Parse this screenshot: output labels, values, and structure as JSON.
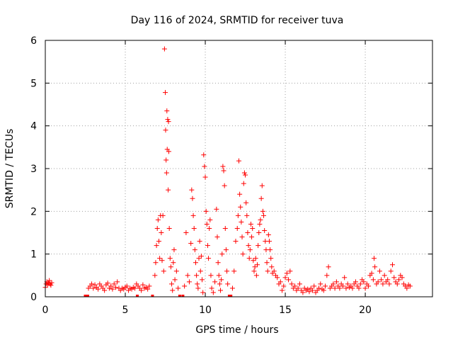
{
  "chart_data": {
    "type": "scatter",
    "title": "Day 116 of 2024, SRMTID for receiver tuva",
    "xlabel": "GPS time / hours",
    "ylabel": "SRMTID / TECUs",
    "xlim": [
      0,
      24.2
    ],
    "ylim": [
      0,
      6
    ],
    "xticks": [
      0,
      5,
      10,
      15,
      20
    ],
    "yticks": [
      0,
      1,
      2,
      3,
      4,
      5,
      6
    ],
    "xtick_labels": [
      "0",
      "5",
      "10",
      "15",
      "20"
    ],
    "ytick_labels": [
      "0",
      "1",
      "2",
      "3",
      "4",
      "5",
      "6"
    ],
    "grid": true,
    "marker": "+",
    "marker_color": "#ff0000",
    "series": [
      {
        "name": "SRMTID",
        "points": [
          [
            0.0,
            0.22
          ],
          [
            0.05,
            0.3
          ],
          [
            0.1,
            0.35
          ],
          [
            0.15,
            0.28
          ],
          [
            0.2,
            0.32
          ],
          [
            0.25,
            0.38
          ],
          [
            0.3,
            0.3
          ],
          [
            0.35,
            0.27
          ],
          [
            0.4,
            0.33
          ],
          [
            2.5,
            0.0
          ],
          [
            2.65,
            0.0
          ],
          [
            2.7,
            0.2
          ],
          [
            2.8,
            0.25
          ],
          [
            2.9,
            0.3
          ],
          [
            3.0,
            0.2
          ],
          [
            3.1,
            0.28
          ],
          [
            3.2,
            0.22
          ],
          [
            3.3,
            0.18
          ],
          [
            3.4,
            0.3
          ],
          [
            3.5,
            0.25
          ],
          [
            3.6,
            0.2
          ],
          [
            3.7,
            0.15
          ],
          [
            3.8,
            0.28
          ],
          [
            3.9,
            0.32
          ],
          [
            4.0,
            0.2
          ],
          [
            4.1,
            0.25
          ],
          [
            4.2,
            0.18
          ],
          [
            4.3,
            0.3
          ],
          [
            4.4,
            0.22
          ],
          [
            4.5,
            0.35
          ],
          [
            4.6,
            0.2
          ],
          [
            4.7,
            0.15
          ],
          [
            4.8,
            0.2
          ],
          [
            4.9,
            0.18
          ],
          [
            5.0,
            0.22
          ],
          [
            5.1,
            0.25
          ],
          [
            5.2,
            0.15
          ],
          [
            5.3,
            0.2
          ],
          [
            5.4,
            0.18
          ],
          [
            5.5,
            0.22
          ],
          [
            5.6,
            0.2
          ],
          [
            5.7,
            0.3
          ],
          [
            5.75,
            0.0
          ],
          [
            5.8,
            0.25
          ],
          [
            5.9,
            0.2
          ],
          [
            6.0,
            0.15
          ],
          [
            6.1,
            0.28
          ],
          [
            6.2,
            0.2
          ],
          [
            6.3,
            0.22
          ],
          [
            6.4,
            0.18
          ],
          [
            6.5,
            0.25
          ],
          [
            6.7,
            0.0
          ],
          [
            6.85,
            0.5
          ],
          [
            6.9,
            0.8
          ],
          [
            6.95,
            1.2
          ],
          [
            7.0,
            1.6
          ],
          [
            7.05,
            1.8
          ],
          [
            7.1,
            1.3
          ],
          [
            7.15,
            0.9
          ],
          [
            7.2,
            1.9
          ],
          [
            7.25,
            1.5
          ],
          [
            7.3,
            0.85
          ],
          [
            7.35,
            1.9
          ],
          [
            7.4,
            0.6
          ],
          [
            7.45,
            5.8
          ],
          [
            7.5,
            4.78
          ],
          [
            7.52,
            3.9
          ],
          [
            7.55,
            3.2
          ],
          [
            7.58,
            2.9
          ],
          [
            7.6,
            4.35
          ],
          [
            7.62,
            3.45
          ],
          [
            7.65,
            4.15
          ],
          [
            7.68,
            2.5
          ],
          [
            7.7,
            4.1
          ],
          [
            7.72,
            3.4
          ],
          [
            7.75,
            1.6
          ],
          [
            7.8,
            0.9
          ],
          [
            7.85,
            0.7
          ],
          [
            7.9,
            0.3
          ],
          [
            7.95,
            0.15
          ],
          [
            8.0,
            0.8
          ],
          [
            8.05,
            1.1
          ],
          [
            8.1,
            0.4
          ],
          [
            8.2,
            0.6
          ],
          [
            8.3,
            0.2
          ],
          [
            8.4,
            0.0
          ],
          [
            8.6,
            0.0
          ],
          [
            8.7,
            0.25
          ],
          [
            8.8,
            1.5
          ],
          [
            8.9,
            0.5
          ],
          [
            9.0,
            0.35
          ],
          [
            9.1,
            1.25
          ],
          [
            9.15,
            2.5
          ],
          [
            9.2,
            2.3
          ],
          [
            9.25,
            1.9
          ],
          [
            9.3,
            1.6
          ],
          [
            9.35,
            1.1
          ],
          [
            9.4,
            0.8
          ],
          [
            9.45,
            0.5
          ],
          [
            9.5,
            0.3
          ],
          [
            9.55,
            0.2
          ],
          [
            9.6,
            0.9
          ],
          [
            9.65,
            1.3
          ],
          [
            9.7,
            0.6
          ],
          [
            9.75,
            0.95
          ],
          [
            9.8,
            0.4
          ],
          [
            9.85,
            0.1
          ],
          [
            9.9,
            3.32
          ],
          [
            9.95,
            3.05
          ],
          [
            10.0,
            2.8
          ],
          [
            10.05,
            2.0
          ],
          [
            10.1,
            1.7
          ],
          [
            10.15,
            1.2
          ],
          [
            10.2,
            0.9
          ],
          [
            10.25,
            1.6
          ],
          [
            10.3,
            1.8
          ],
          [
            10.35,
            0.5
          ],
          [
            10.4,
            0.2
          ],
          [
            10.5,
            0.1
          ],
          [
            10.6,
            0.35
          ],
          [
            10.7,
            2.05
          ],
          [
            10.75,
            1.4
          ],
          [
            10.8,
            0.8
          ],
          [
            10.85,
            0.5
          ],
          [
            10.9,
            0.3
          ],
          [
            10.95,
            0.15
          ],
          [
            11.0,
            0.4
          ],
          [
            11.05,
            1.0
          ],
          [
            11.1,
            3.05
          ],
          [
            11.15,
            2.95
          ],
          [
            11.2,
            2.6
          ],
          [
            11.25,
            1.6
          ],
          [
            11.3,
            1.1
          ],
          [
            11.35,
            0.6
          ],
          [
            11.4,
            0.3
          ],
          [
            11.5,
            0.0
          ],
          [
            11.6,
            0.0
          ],
          [
            11.7,
            0.2
          ],
          [
            11.8,
            0.6
          ],
          [
            11.9,
            1.3
          ],
          [
            12.0,
            1.6
          ],
          [
            12.05,
            1.9
          ],
          [
            12.1,
            3.18
          ],
          [
            12.15,
            2.4
          ],
          [
            12.2,
            2.1
          ],
          [
            12.25,
            1.75
          ],
          [
            12.3,
            1.4
          ],
          [
            12.35,
            1.0
          ],
          [
            12.4,
            2.65
          ],
          [
            12.45,
            2.9
          ],
          [
            12.5,
            2.85
          ],
          [
            12.55,
            2.2
          ],
          [
            12.6,
            1.9
          ],
          [
            12.65,
            1.5
          ],
          [
            12.7,
            1.2
          ],
          [
            12.75,
            0.9
          ],
          [
            12.8,
            1.1
          ],
          [
            12.85,
            1.7
          ],
          [
            12.9,
            1.4
          ],
          [
            12.95,
            1.6
          ],
          [
            13.0,
            0.85
          ],
          [
            13.05,
            0.6
          ],
          [
            13.1,
            0.7
          ],
          [
            13.15,
            0.9
          ],
          [
            13.2,
            0.5
          ],
          [
            13.25,
            0.75
          ],
          [
            13.3,
            1.2
          ],
          [
            13.35,
            1.5
          ],
          [
            13.4,
            1.7
          ],
          [
            13.45,
            1.8
          ],
          [
            13.5,
            2.3
          ],
          [
            13.55,
            2.6
          ],
          [
            13.6,
            2.0
          ],
          [
            13.65,
            1.9
          ],
          [
            13.7,
            1.55
          ],
          [
            13.75,
            1.3
          ],
          [
            13.8,
            1.1
          ],
          [
            13.85,
            0.8
          ],
          [
            13.9,
            0.6
          ],
          [
            13.95,
            1.45
          ],
          [
            14.0,
            1.3
          ],
          [
            14.05,
            1.1
          ],
          [
            14.1,
            0.9
          ],
          [
            14.15,
            0.7
          ],
          [
            14.2,
            0.55
          ],
          [
            14.3,
            0.6
          ],
          [
            14.4,
            0.5
          ],
          [
            14.5,
            0.45
          ],
          [
            14.6,
            0.3
          ],
          [
            14.7,
            0.35
          ],
          [
            14.8,
            0.15
          ],
          [
            14.9,
            0.25
          ],
          [
            15.0,
            0.45
          ],
          [
            15.1,
            0.55
          ],
          [
            15.2,
            0.4
          ],
          [
            15.3,
            0.6
          ],
          [
            15.4,
            0.3
          ],
          [
            15.5,
            0.2
          ],
          [
            15.6,
            0.25
          ],
          [
            15.7,
            0.15
          ],
          [
            15.8,
            0.2
          ],
          [
            15.9,
            0.3
          ],
          [
            16.0,
            0.15
          ],
          [
            16.1,
            0.1
          ],
          [
            16.2,
            0.2
          ],
          [
            16.3,
            0.15
          ],
          [
            16.4,
            0.18
          ],
          [
            16.5,
            0.12
          ],
          [
            16.6,
            0.2
          ],
          [
            16.7,
            0.15
          ],
          [
            16.8,
            0.25
          ],
          [
            16.9,
            0.1
          ],
          [
            17.0,
            0.15
          ],
          [
            17.1,
            0.2
          ],
          [
            17.2,
            0.3
          ],
          [
            17.3,
            0.18
          ],
          [
            17.4,
            0.15
          ],
          [
            17.5,
            0.25
          ],
          [
            17.6,
            0.5
          ],
          [
            17.7,
            0.7
          ],
          [
            17.8,
            0.2
          ],
          [
            17.9,
            0.25
          ],
          [
            18.0,
            0.3
          ],
          [
            18.1,
            0.2
          ],
          [
            18.2,
            0.35
          ],
          [
            18.3,
            0.25
          ],
          [
            18.4,
            0.2
          ],
          [
            18.5,
            0.3
          ],
          [
            18.6,
            0.25
          ],
          [
            18.7,
            0.45
          ],
          [
            18.8,
            0.2
          ],
          [
            18.9,
            0.3
          ],
          [
            19.0,
            0.22
          ],
          [
            19.1,
            0.25
          ],
          [
            19.2,
            0.2
          ],
          [
            19.3,
            0.3
          ],
          [
            19.4,
            0.35
          ],
          [
            19.5,
            0.25
          ],
          [
            19.6,
            0.2
          ],
          [
            19.7,
            0.3
          ],
          [
            19.8,
            0.4
          ],
          [
            19.9,
            0.35
          ],
          [
            20.0,
            0.2
          ],
          [
            20.1,
            0.3
          ],
          [
            20.2,
            0.25
          ],
          [
            20.3,
            0.5
          ],
          [
            20.4,
            0.55
          ],
          [
            20.5,
            0.4
          ],
          [
            20.55,
            0.9
          ],
          [
            20.6,
            0.7
          ],
          [
            20.7,
            0.3
          ],
          [
            20.8,
            0.35
          ],
          [
            20.9,
            0.6
          ],
          [
            21.0,
            0.4
          ],
          [
            21.1,
            0.3
          ],
          [
            21.2,
            0.5
          ],
          [
            21.3,
            0.35
          ],
          [
            21.4,
            0.4
          ],
          [
            21.5,
            0.3
          ],
          [
            21.6,
            0.6
          ],
          [
            21.7,
            0.75
          ],
          [
            21.8,
            0.45
          ],
          [
            21.9,
            0.35
          ],
          [
            22.0,
            0.3
          ],
          [
            22.1,
            0.4
          ],
          [
            22.2,
            0.5
          ],
          [
            22.3,
            0.45
          ],
          [
            22.4,
            0.3
          ],
          [
            22.5,
            0.25
          ],
          [
            22.6,
            0.2
          ],
          [
            22.7,
            0.28
          ],
          [
            22.8,
            0.25
          ]
        ]
      }
    ]
  }
}
